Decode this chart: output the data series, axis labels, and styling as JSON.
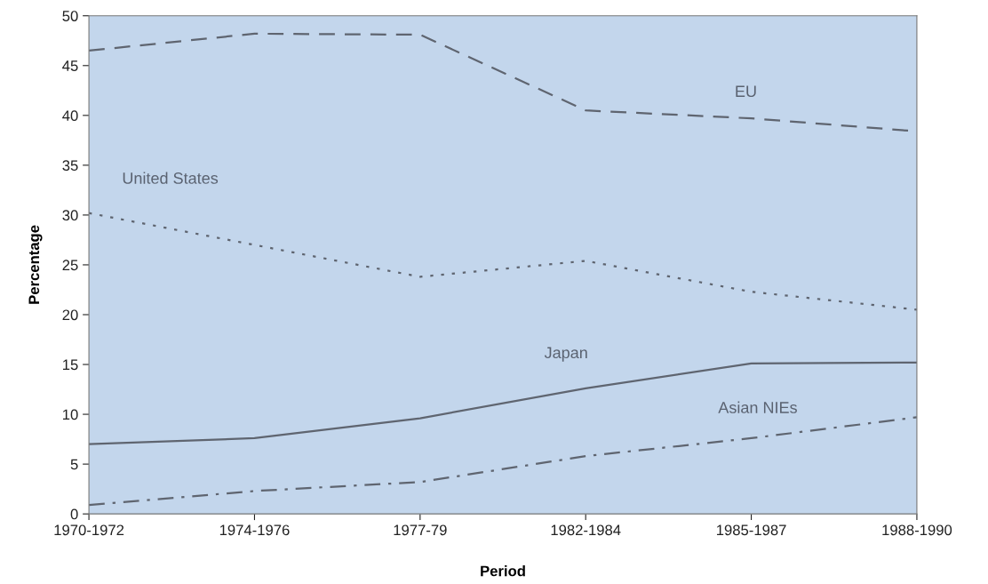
{
  "chart_data": {
    "type": "line",
    "xlabel": "Period",
    "ylabel": "Percentage",
    "categories": [
      "1970-1972",
      "1974-1976",
      "1977-79",
      "1982-1984",
      "1985-1987",
      "1988-1990"
    ],
    "series": [
      {
        "name": "EU",
        "color": "#5f6570",
        "line_style": "dashed",
        "values": [
          46.5,
          48.2,
          48.1,
          40.5,
          39.7,
          38.4
        ]
      },
      {
        "name": "United States",
        "color": "#5f6570",
        "line_style": "dotted",
        "values": [
          30.2,
          27.0,
          23.8,
          25.4,
          22.3,
          20.5
        ]
      },
      {
        "name": "Japan",
        "color": "#5f6570",
        "line_style": "solid",
        "values": [
          7.0,
          7.6,
          9.6,
          12.6,
          15.1,
          15.2
        ]
      },
      {
        "name": "Asian NIEs",
        "color": "#5f6570",
        "line_style": "dashdot",
        "values": [
          0.9,
          2.3,
          3.2,
          5.8,
          7.6,
          9.7
        ]
      }
    ],
    "ylim": [
      0,
      50
    ],
    "yticks": [
      0,
      5,
      10,
      15,
      20,
      25,
      30,
      35,
      40,
      45,
      50
    ],
    "grid": false,
    "legend": false
  }
}
